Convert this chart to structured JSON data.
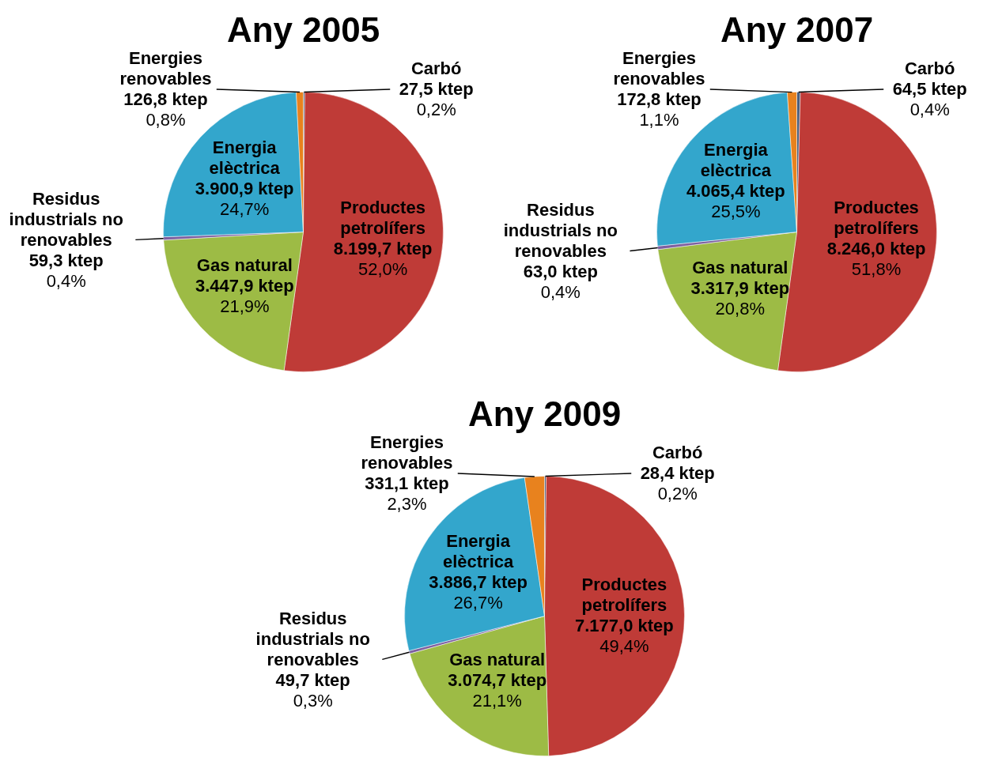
{
  "chart_data": [
    {
      "type": "pie",
      "title": "Any 2005",
      "categories": [
        "Carbó",
        "Productes petrolífers",
        "Gas natural",
        "Residus industrials no renovables",
        "Energia elèctrica",
        "Energies renovables"
      ],
      "values": [
        27.5,
        8199.7,
        3447.9,
        59.3,
        3900.9,
        126.8
      ],
      "value_labels": [
        "27,5 ktep\n0,2%",
        "8.199,7 ktep\n52,0%",
        "3.447,9 ktep\n21,9%",
        "59,3 ktep\n0,4%",
        "3.900,9 ktep\n24,7%",
        "126,8 ktep\n0,8%"
      ],
      "colors": [
        "#4a5f7f",
        "#bf3b37",
        "#9dbb45",
        "#7d5fa0",
        "#33a6cc",
        "#e8821e"
      ]
    },
    {
      "type": "pie",
      "title": "Any 2007",
      "categories": [
        "Carbó",
        "Productes petrolífers",
        "Gas natural",
        "Residus industrials no renovables",
        "Energia elèctrica",
        "Energies renovables"
      ],
      "values": [
        64.5,
        8246.0,
        3317.9,
        63.0,
        4065.4,
        172.8
      ],
      "value_labels": [
        "64,5 ktep\n0,4%",
        "8.246,0 ktep\n51,8%",
        "3.317,9 ktep\n20,8%",
        "63,0 ktep\n0,4%",
        "4.065,4 ktep\n25,5%",
        "172,8 ktep\n1,1%"
      ],
      "colors": [
        "#4a5f7f",
        "#bf3b37",
        "#9dbb45",
        "#7d5fa0",
        "#33a6cc",
        "#e8821e"
      ]
    },
    {
      "type": "pie",
      "title": "Any 2009",
      "categories": [
        "Carbó",
        "Productes petrolífers",
        "Gas natural",
        "Residus industrials no renovables",
        "Energia elèctrica",
        "Energies renovables"
      ],
      "values": [
        28.4,
        7177.0,
        3074.7,
        49.7,
        3886.7,
        331.1
      ],
      "value_labels": [
        "28,4 ktep\n0,2%",
        "7.177,0 ktep\n49,4%",
        "3.074,7 ktep\n21,1%",
        "49,7 ktep\n0,3%",
        "3.886,7 ktep\n26,7%",
        "331,1 ktep\n2,3%"
      ],
      "colors": [
        "#4a5f7f",
        "#bf3b37",
        "#9dbb45",
        "#7d5fa0",
        "#33a6cc",
        "#e8821e"
      ]
    }
  ]
}
